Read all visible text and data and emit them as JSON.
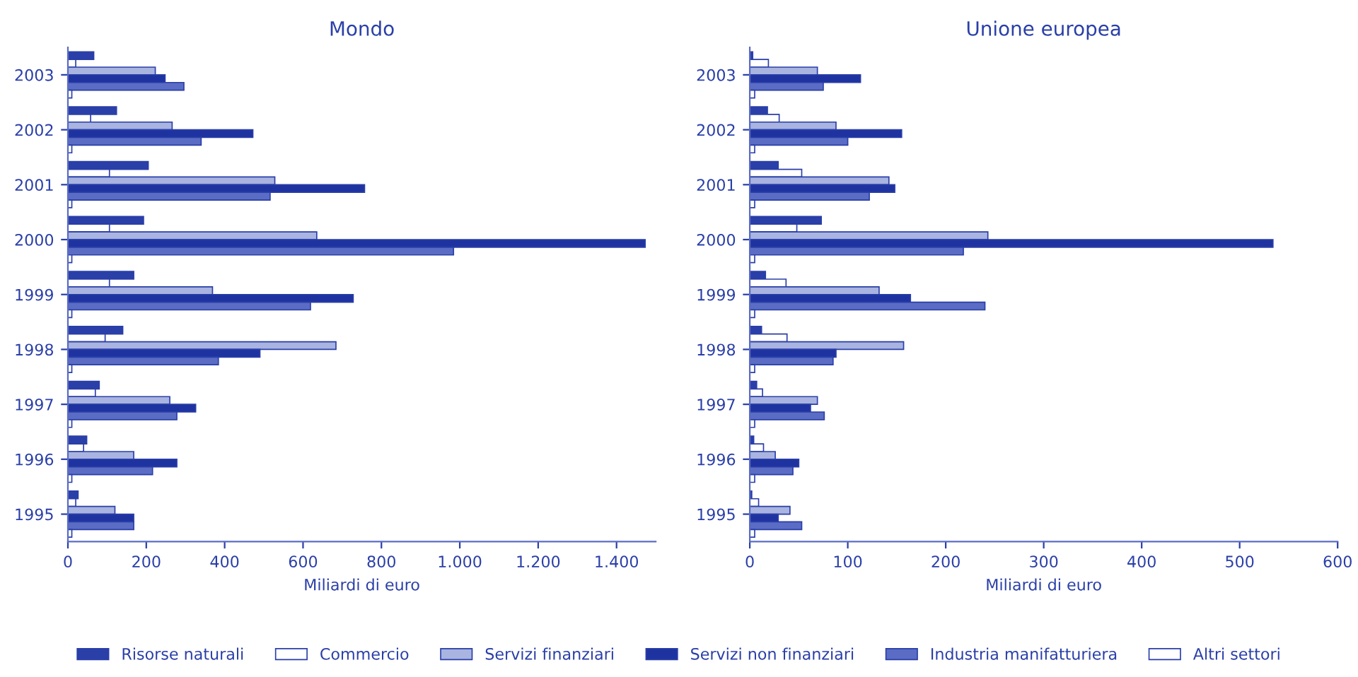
{
  "chart_data": [
    {
      "type": "bar",
      "orientation": "horizontal",
      "title": "Mondo",
      "xlabel": "Miliardi di euro",
      "categories": [
        "2003",
        "2002",
        "2001",
        "2000",
        "1999",
        "1998",
        "1997",
        "1996",
        "1995"
      ],
      "legend": "bottom",
      "xlim": [
        0,
        1500
      ],
      "xticks": [
        0,
        200,
        400,
        600,
        800,
        {
          "value": 1000,
          "label": "1.000"
        },
        {
          "value": 1200,
          "label": "1.200"
        },
        {
          "value": 1400,
          "label": "1.400"
        }
      ],
      "series": [
        {
          "name": "Risorse naturali",
          "color": "#2a3fa8",
          "values": [
            66,
            124,
            205,
            193,
            168,
            140,
            80,
            48,
            26
          ]
        },
        {
          "name": "Commercio",
          "color": "#ffffff",
          "values": [
            20,
            58,
            106,
            106,
            106,
            95,
            70,
            40,
            20
          ]
        },
        {
          "name": "Servizi finanziari",
          "color": "#a9b4e0",
          "values": [
            223,
            266,
            528,
            635,
            369,
            684,
            260,
            168,
            120
          ]
        },
        {
          "name": "Servizi non finanziari",
          "color": "#1f33a0",
          "values": [
            248,
            472,
            757,
            1473,
            728,
            490,
            326,
            278,
            168
          ]
        },
        {
          "name": "Industria manifatturiera",
          "color": "#5a6cc4",
          "values": [
            296,
            340,
            516,
            984,
            619,
            384,
            278,
            216,
            168
          ]
        },
        {
          "name": "Altri settori",
          "color": "#ffffff",
          "values": [
            10,
            10,
            10,
            10,
            10,
            10,
            10,
            10,
            10
          ]
        }
      ]
    },
    {
      "type": "bar",
      "orientation": "horizontal",
      "title": "Unione europea",
      "xlabel": "Miliardi di euro",
      "categories": [
        "2003",
        "2002",
        "2001",
        "2000",
        "1999",
        "1998",
        "1997",
        "1996",
        "1995"
      ],
      "xlim": [
        0,
        600
      ],
      "xticks": [
        0,
        100,
        200,
        300,
        400,
        500,
        600
      ],
      "series": [
        {
          "color": "#2a3fa8",
          "values": [
            3,
            18,
            29,
            73,
            16,
            12,
            7,
            4,
            2
          ]
        },
        {
          "color": "#ffffff",
          "values": [
            19,
            30,
            53,
            48,
            37,
            38,
            13,
            14,
            9
          ]
        },
        {
          "color": "#a9b4e0",
          "values": [
            69,
            88,
            142,
            243,
            132,
            157,
            69,
            26,
            41
          ]
        },
        {
          "color": "#1f33a0",
          "values": [
            113,
            155,
            148,
            534,
            164,
            88,
            62,
            50,
            29
          ]
        },
        {
          "color": "#5a6cc4",
          "values": [
            75,
            100,
            122,
            218,
            240,
            85,
            76,
            44,
            53
          ]
        },
        {
          "color": "#ffffff",
          "values": [
            5,
            5,
            5,
            5,
            5,
            5,
            5,
            5,
            5
          ]
        }
      ]
    }
  ]
}
